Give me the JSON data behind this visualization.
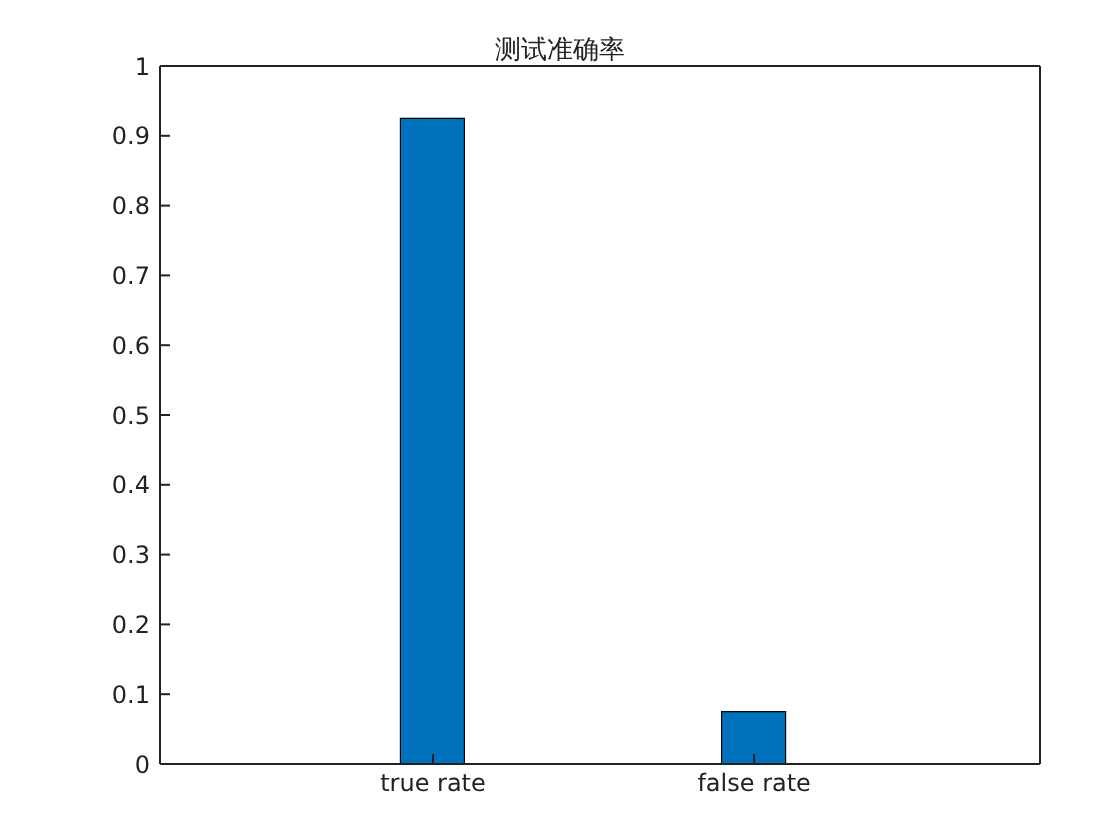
{
  "chart_data": {
    "type": "bar",
    "title": "测试准确率",
    "categories": [
      "true rate",
      "false rate"
    ],
    "values": [
      0.925,
      0.075
    ],
    "color": "#0072bd",
    "ylim": [
      0,
      1
    ],
    "yticks": [
      0,
      0.1,
      0.2,
      0.3,
      0.4,
      0.5,
      0.6,
      0.7,
      0.8,
      0.9,
      1
    ],
    "grid": false
  }
}
